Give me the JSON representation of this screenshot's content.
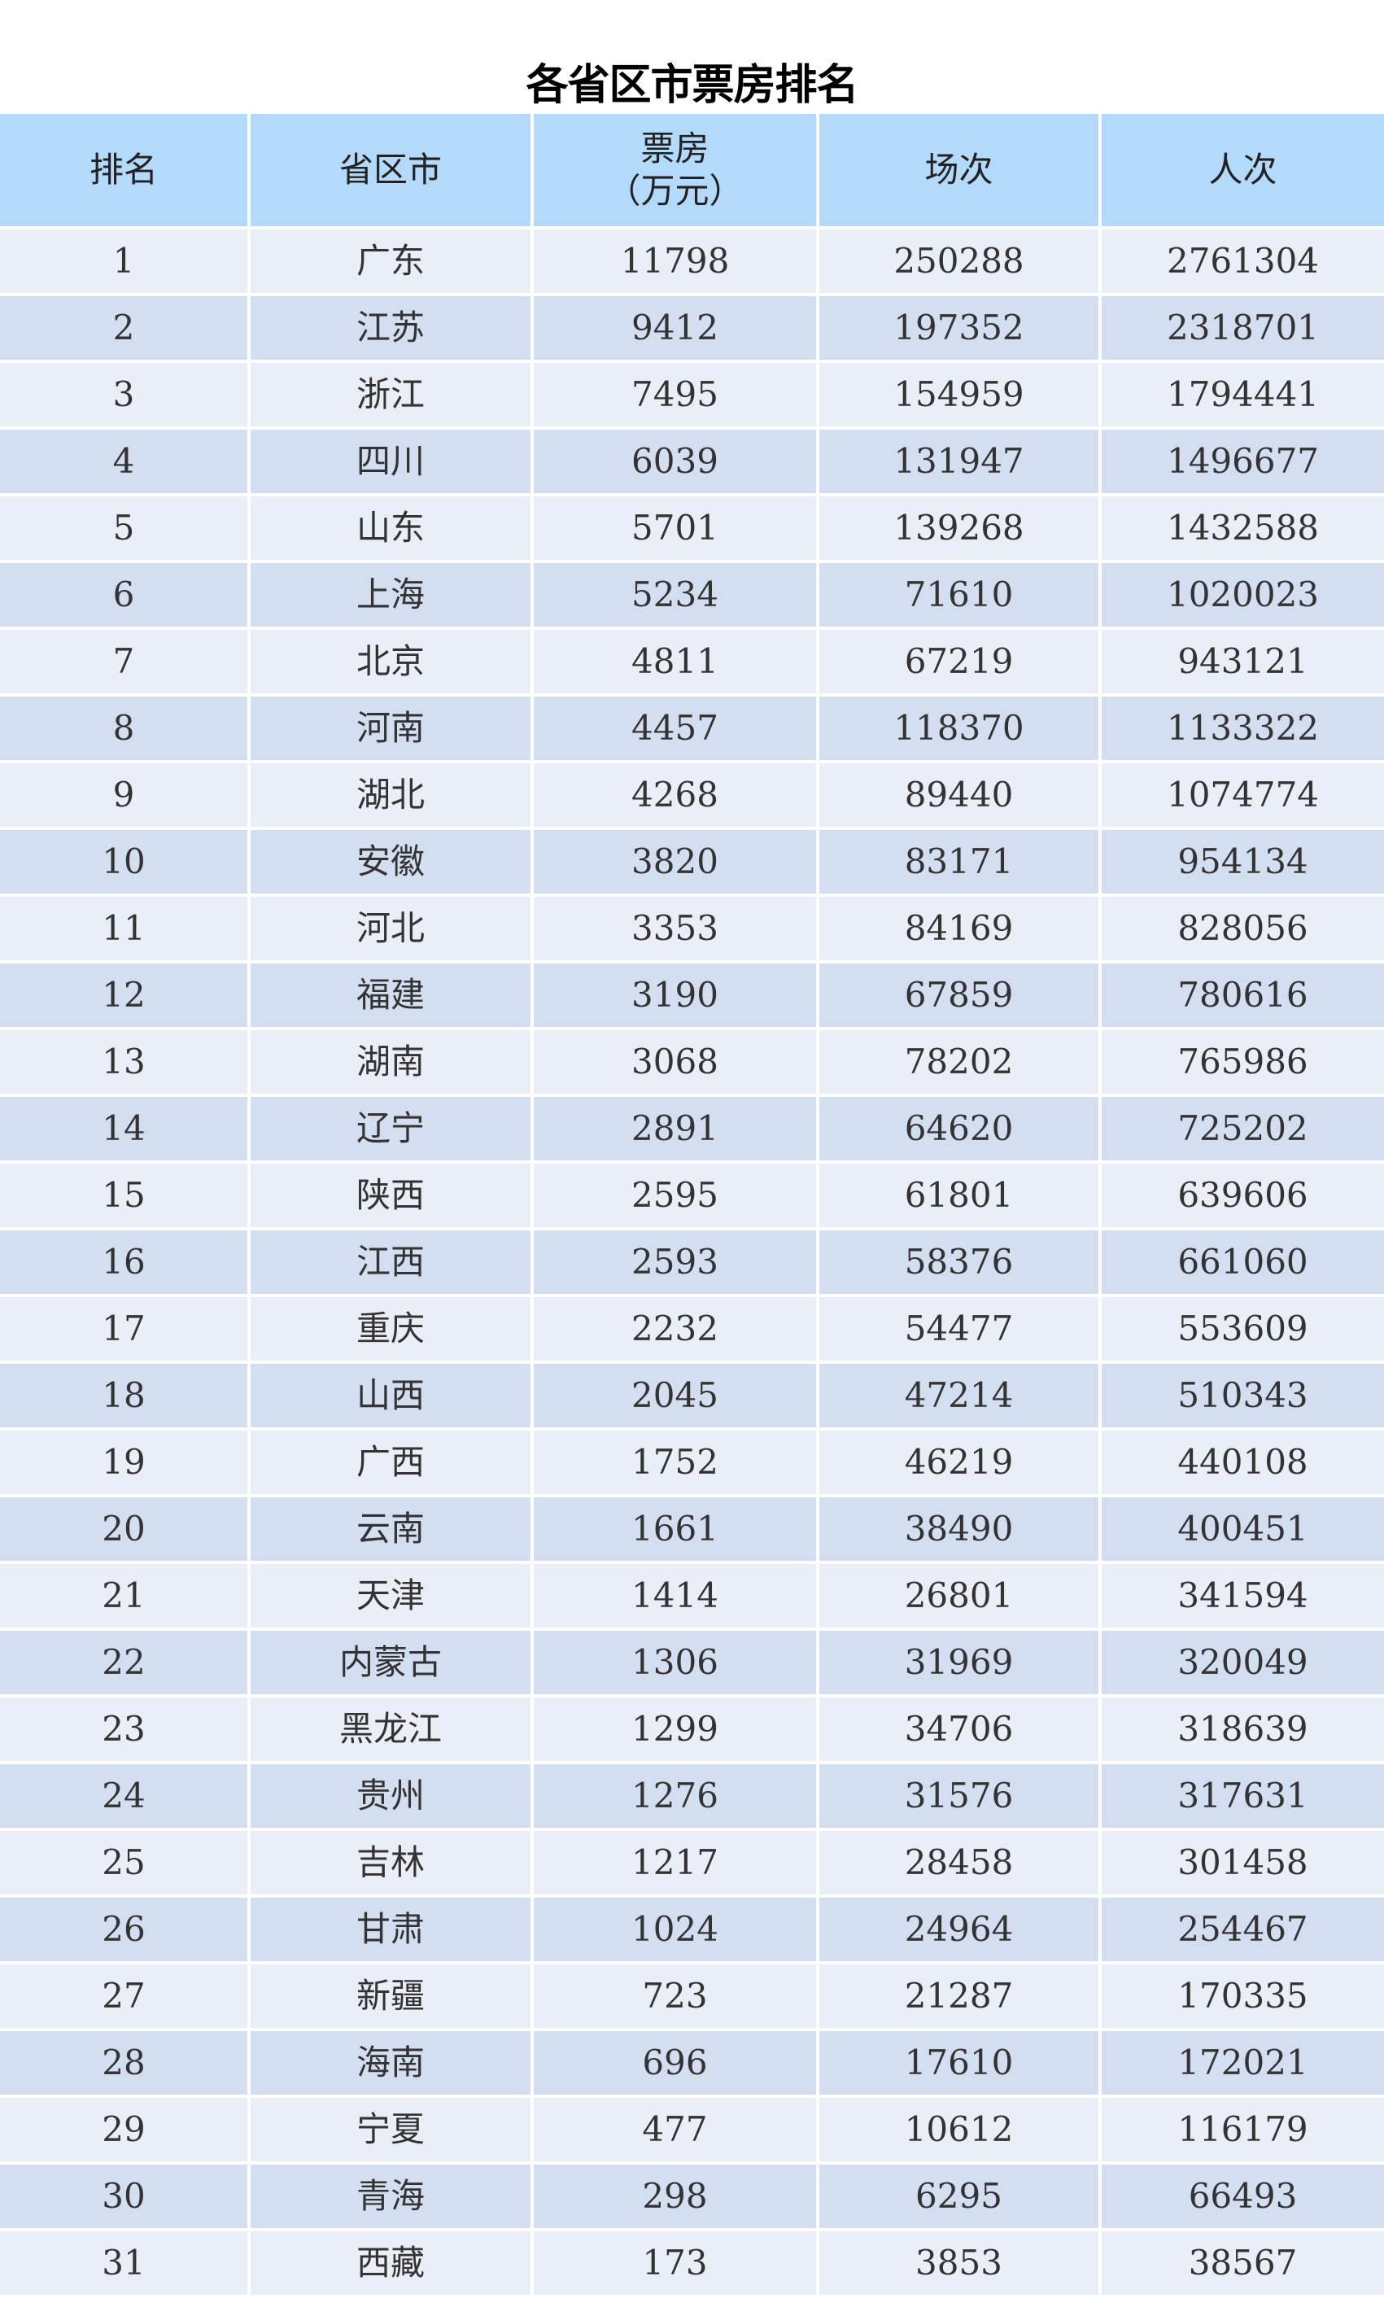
{
  "title": "各省区市票房排名",
  "colors": {
    "header_bg": "#b3d9fb",
    "row_odd_bg": "#e9eef7",
    "row_even_bg": "#d3dff0"
  },
  "columns": [
    "排名",
    "省区市",
    "票房",
    "场次",
    "人次"
  ],
  "box_office_unit": "（万元）",
  "rows": [
    [
      "1",
      "广东",
      "11798",
      "250288",
      "2761304"
    ],
    [
      "2",
      "江苏",
      "9412",
      "197352",
      "2318701"
    ],
    [
      "3",
      "浙江",
      "7495",
      "154959",
      "1794441"
    ],
    [
      "4",
      "四川",
      "6039",
      "131947",
      "1496677"
    ],
    [
      "5",
      "山东",
      "5701",
      "139268",
      "1432588"
    ],
    [
      "6",
      "上海",
      "5234",
      "71610",
      "1020023"
    ],
    [
      "7",
      "北京",
      "4811",
      "67219",
      "943121"
    ],
    [
      "8",
      "河南",
      "4457",
      "118370",
      "1133322"
    ],
    [
      "9",
      "湖北",
      "4268",
      "89440",
      "1074774"
    ],
    [
      "10",
      "安徽",
      "3820",
      "83171",
      "954134"
    ],
    [
      "11",
      "河北",
      "3353",
      "84169",
      "828056"
    ],
    [
      "12",
      "福建",
      "3190",
      "67859",
      "780616"
    ],
    [
      "13",
      "湖南",
      "3068",
      "78202",
      "765986"
    ],
    [
      "14",
      "辽宁",
      "2891",
      "64620",
      "725202"
    ],
    [
      "15",
      "陕西",
      "2595",
      "61801",
      "639606"
    ],
    [
      "16",
      "江西",
      "2593",
      "58376",
      "661060"
    ],
    [
      "17",
      "重庆",
      "2232",
      "54477",
      "553609"
    ],
    [
      "18",
      "山西",
      "2045",
      "47214",
      "510343"
    ],
    [
      "19",
      "广西",
      "1752",
      "46219",
      "440108"
    ],
    [
      "20",
      "云南",
      "1661",
      "38490",
      "400451"
    ],
    [
      "21",
      "天津",
      "1414",
      "26801",
      "341594"
    ],
    [
      "22",
      "内蒙古",
      "1306",
      "31969",
      "320049"
    ],
    [
      "23",
      "黑龙江",
      "1299",
      "34706",
      "318639"
    ],
    [
      "24",
      "贵州",
      "1276",
      "31576",
      "317631"
    ],
    [
      "25",
      "吉林",
      "1217",
      "28458",
      "301458"
    ],
    [
      "26",
      "甘肃",
      "1024",
      "24964",
      "254467"
    ],
    [
      "27",
      "新疆",
      "723",
      "21287",
      "170335"
    ],
    [
      "28",
      "海南",
      "696",
      "17610",
      "172021"
    ],
    [
      "29",
      "宁夏",
      "477",
      "10612",
      "116179"
    ],
    [
      "30",
      "青海",
      "298",
      "6295",
      "66493"
    ],
    [
      "31",
      "西藏",
      "173",
      "3853",
      "38567"
    ]
  ]
}
